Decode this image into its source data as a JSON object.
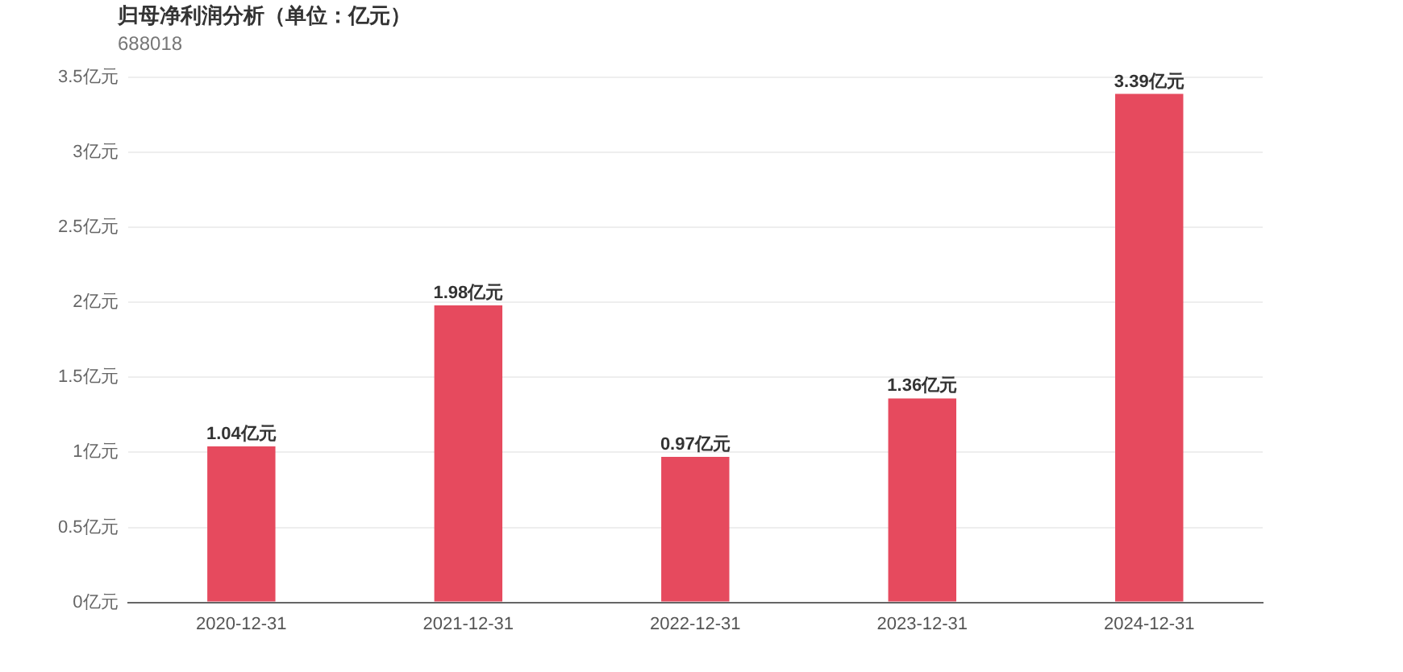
{
  "chart_data": {
    "type": "bar",
    "title": "归母净利润分析（单位：亿元）",
    "subtitle": "688018",
    "categories": [
      "2020-12-31",
      "2021-12-31",
      "2022-12-31",
      "2023-12-31",
      "2024-12-31"
    ],
    "values": [
      1.04,
      1.98,
      0.97,
      1.36,
      3.39
    ],
    "value_labels": [
      "1.04亿元",
      "1.98亿元",
      "0.97亿元",
      "1.36亿元",
      "3.39亿元"
    ],
    "color": "#e64a5e",
    "ylim": [
      0,
      3.5
    ],
    "yticks": [
      {
        "value": 0,
        "label": "0亿元"
      },
      {
        "value": 0.5,
        "label": "0.5亿元"
      },
      {
        "value": 1,
        "label": "1亿元"
      },
      {
        "value": 1.5,
        "label": "1.5亿元"
      },
      {
        "value": 2,
        "label": "2亿元"
      },
      {
        "value": 2.5,
        "label": "2.5亿元"
      },
      {
        "value": 3,
        "label": "3亿元"
      },
      {
        "value": 3.5,
        "label": "3.5亿元"
      }
    ],
    "grid": "y",
    "legend": false
  }
}
